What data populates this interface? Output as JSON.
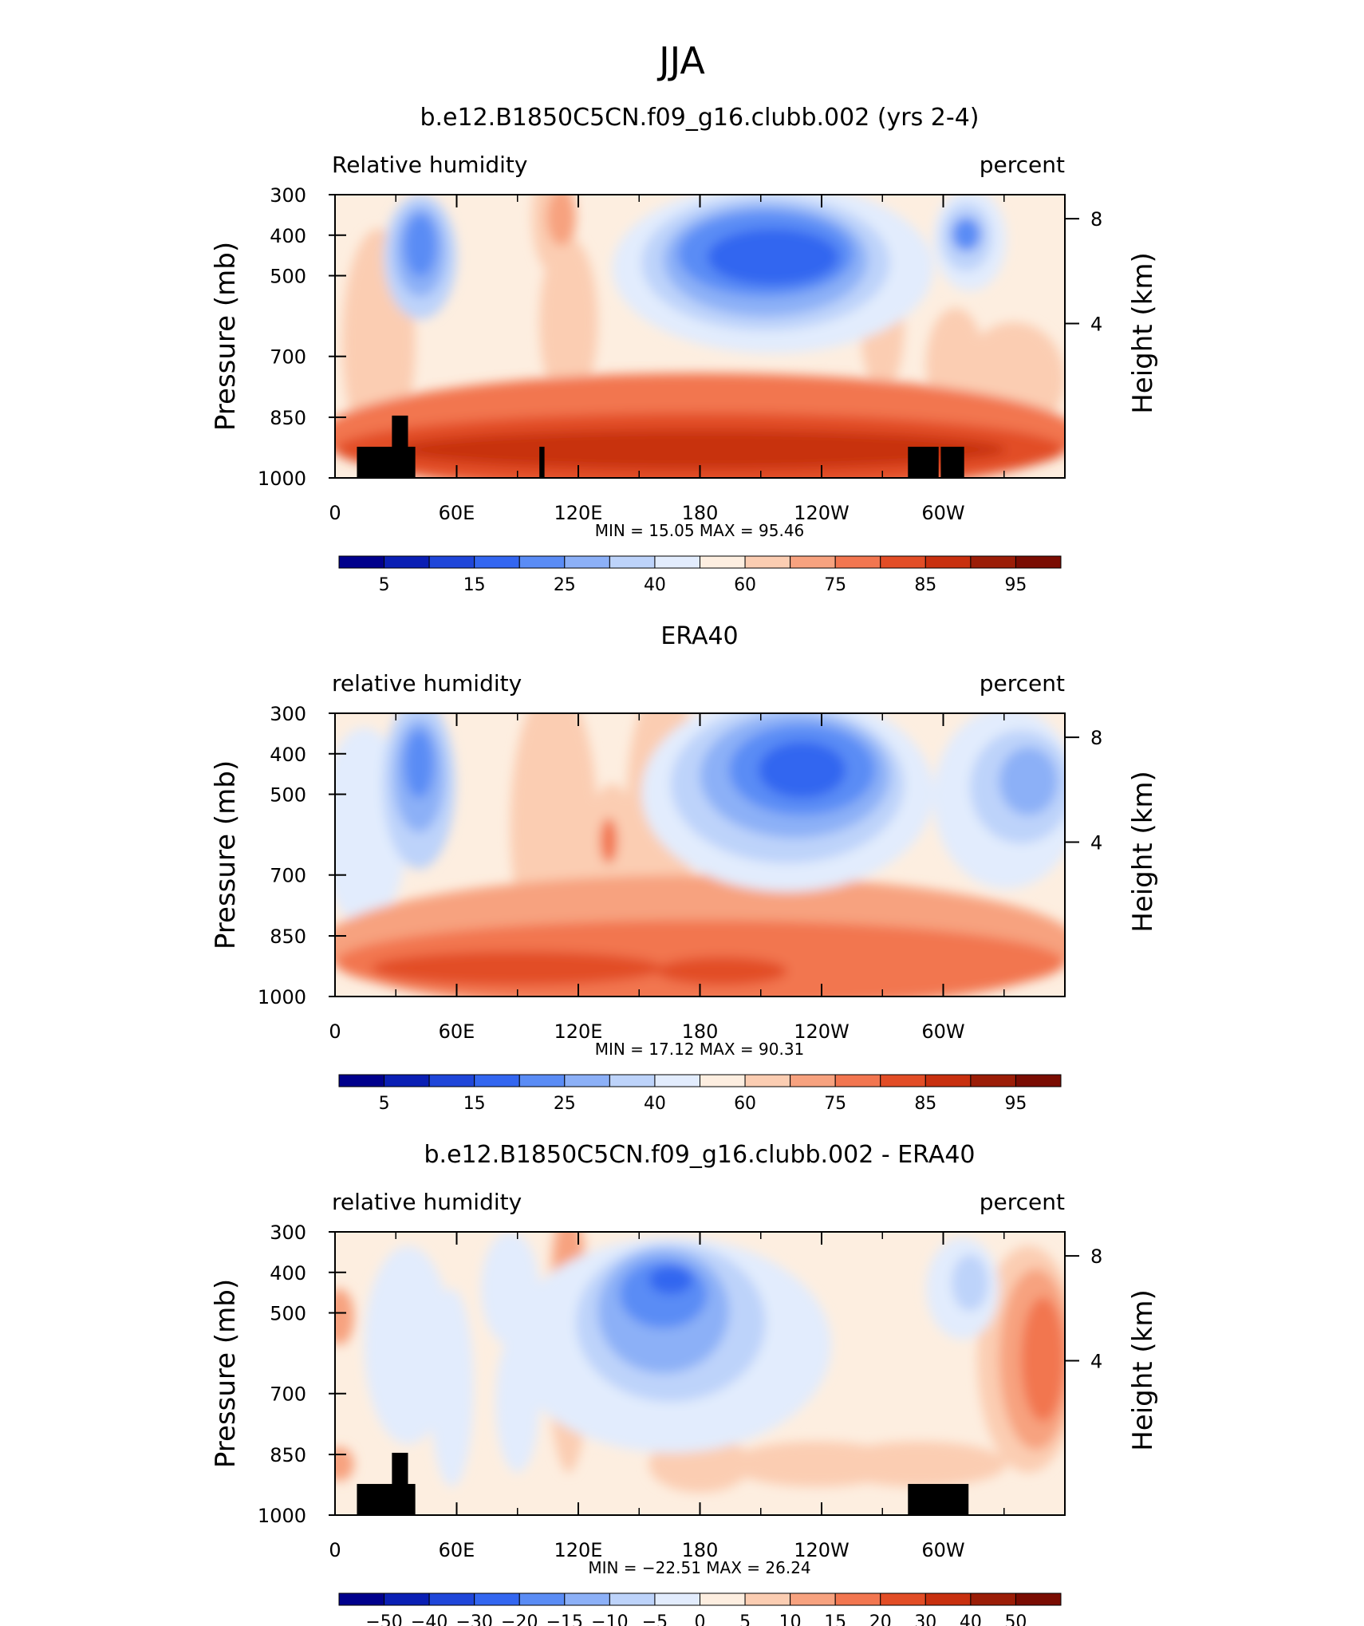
{
  "main_title": "JJA",
  "chart_data": [
    {
      "type": "heatmap",
      "title": "b.e12.B1850C5CN.f09_g16.clubb.002 (yrs 2-4)",
      "left_label": "Relative humidity",
      "right_label": "percent",
      "ylabel": "Pressure (mb)",
      "ylabel_right": "Height (km)",
      "x_ticks": [
        "0",
        "60E",
        "120E",
        "180",
        "120W",
        "60W"
      ],
      "y_ticks": [
        "300",
        "400",
        "500",
        "700",
        "850",
        "1000"
      ],
      "y2_ticks": [
        "8",
        "4"
      ],
      "stats": "MIN =   15.05   MAX =   95.46",
      "min": 15.05,
      "max": 95.46,
      "levels": [
        "5",
        "15",
        "25",
        "40",
        "60",
        "75",
        "85",
        "95"
      ],
      "colormap": "blue-white-red"
    },
    {
      "type": "heatmap",
      "title": "ERA40",
      "left_label": "relative humidity",
      "right_label": "percent",
      "ylabel": "Pressure (mb)",
      "ylabel_right": "Height (km)",
      "x_ticks": [
        "0",
        "60E",
        "120E",
        "180",
        "120W",
        "60W"
      ],
      "y_ticks": [
        "300",
        "400",
        "500",
        "700",
        "850",
        "1000"
      ],
      "y2_ticks": [
        "8",
        "4"
      ],
      "stats": "MIN =   17.12   MAX =   90.31",
      "min": 17.12,
      "max": 90.31,
      "levels": [
        "5",
        "15",
        "25",
        "40",
        "60",
        "75",
        "85",
        "95"
      ],
      "colormap": "blue-white-red"
    },
    {
      "type": "heatmap",
      "title": "b.e12.B1850C5CN.f09_g16.clubb.002 - ERA40",
      "left_label": "relative humidity",
      "right_label": "percent",
      "ylabel": "Pressure (mb)",
      "ylabel_right": "Height (km)",
      "x_ticks": [
        "0",
        "60E",
        "120E",
        "180",
        "120W",
        "60W"
      ],
      "y_ticks": [
        "300",
        "400",
        "500",
        "700",
        "850",
        "1000"
      ],
      "y2_ticks": [
        "8",
        "4"
      ],
      "stats": "MIN =  −22.51   MAX =   26.24",
      "min": -22.51,
      "max": 26.24,
      "levels": [
        "−50",
        "−40",
        "−30",
        "−20",
        "−15",
        "−10",
        "−5",
        "0",
        "5",
        "10",
        "15",
        "20",
        "30",
        "40",
        "50"
      ],
      "colormap": "blue-white-red"
    }
  ]
}
